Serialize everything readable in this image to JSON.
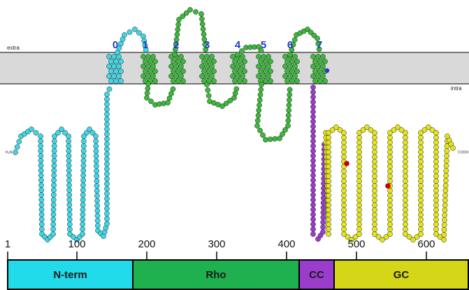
{
  "membrane": {
    "outside": "extra",
    "inside": "intra"
  },
  "helices": [
    "0",
    "1",
    "2",
    "3",
    "4",
    "5",
    "6",
    "7"
  ],
  "termini": {
    "n": "H₂N",
    "c": "COOH"
  },
  "domain_map": {
    "lim": [
      1,
      660
    ],
    "ticks": [
      1,
      100,
      200,
      300,
      400,
      500,
      600
    ],
    "domains": [
      {
        "label": "N-term",
        "start": 1,
        "end": 180,
        "color": "#22dbea"
      },
      {
        "label": "Rho",
        "start": 180,
        "end": 418,
        "color": "#1fb04f"
      },
      {
        "label": "CC",
        "start": 418,
        "end": 468,
        "color": "#9b3dcc"
      },
      {
        "label": "GC",
        "start": 468,
        "end": 660,
        "color": "#d6d619"
      }
    ]
  }
}
